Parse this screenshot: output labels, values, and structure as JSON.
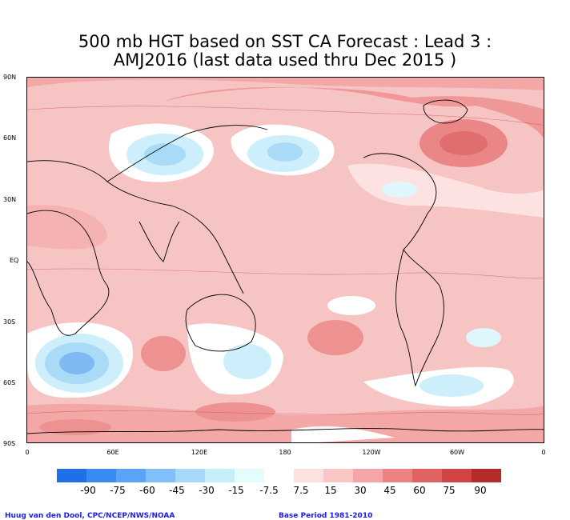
{
  "title_line1": "500 mb HGT based on SST CA Forecast : Lead 3 :",
  "title_line2": "AMJ2016 (last data used thru Dec 2015 )",
  "map": {
    "lat_labels": [
      "90N",
      "60N",
      "30N",
      "EQ",
      "30S",
      "60S",
      "90S"
    ],
    "lon_labels": [
      "0",
      "60E",
      "120E",
      "180",
      "120W",
      "60W",
      "0"
    ]
  },
  "legend": {
    "labels": [
      "-90",
      "-75",
      "-60",
      "-45",
      "-30",
      "-15",
      "-7.5",
      "7.5",
      "15",
      "30",
      "45",
      "60",
      "75",
      "90"
    ],
    "colors": [
      "#1f6fe6",
      "#3b8af0",
      "#5aa3f5",
      "#80bff9",
      "#a6d8fb",
      "#c8eefc",
      "#e4fcfc",
      "#ffffff",
      "#fde0e0",
      "#f9c5c5",
      "#f4a5a5",
      "#ec8282",
      "#e06262",
      "#d04444",
      "#b52a2a"
    ]
  },
  "credits": {
    "left": "Huug van den Dool, CPC/NCEP/NWS/NOAA",
    "right": "Base Period 1981-2010"
  }
}
